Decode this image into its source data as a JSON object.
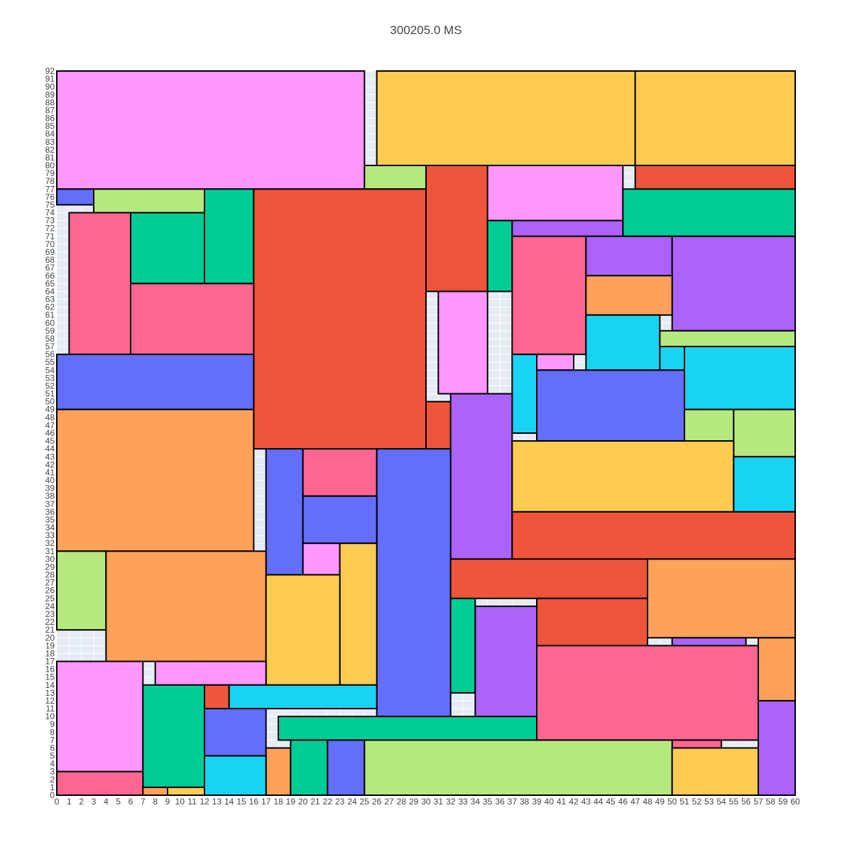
{
  "chart_data": {
    "type": "rectangle-packing",
    "title": "300205.0 MS",
    "xlim": [
      0,
      60
    ],
    "ylim": [
      0,
      92
    ],
    "grid": true,
    "colors": {
      "pink": "#ff97ff",
      "yellow": "#fecb52",
      "green": "#00cc96",
      "red": "#ef553b",
      "blue": "#636efa",
      "purple": "#ab63fa",
      "orange": "#ffa15a",
      "cyan": "#19d3f3",
      "lime": "#b6e880",
      "rose": "#ff6692",
      "background": "#e5ecf6",
      "outline": "#000000"
    },
    "rectangles": [
      {
        "x0": 0,
        "y0": 77,
        "x1": 25,
        "y1": 92,
        "color": "pink"
      },
      {
        "x0": 26,
        "y0": 80,
        "x1": 47,
        "y1": 92,
        "color": "yellow"
      },
      {
        "x0": 47,
        "y0": 80,
        "x1": 60,
        "y1": 92,
        "color": "yellow"
      },
      {
        "x0": 25,
        "y0": 77,
        "x1": 30,
        "y1": 80,
        "color": "lime"
      },
      {
        "x0": 30,
        "y0": 64,
        "x1": 35,
        "y1": 80,
        "color": "red"
      },
      {
        "x0": 35,
        "y0": 73,
        "x1": 46,
        "y1": 80,
        "color": "pink"
      },
      {
        "x0": 47,
        "y0": 77,
        "x1": 60,
        "y1": 80,
        "color": "red"
      },
      {
        "x0": 0,
        "y0": 75,
        "x1": 3,
        "y1": 77,
        "color": "blue"
      },
      {
        "x0": 3,
        "y0": 74,
        "x1": 12,
        "y1": 77,
        "color": "lime"
      },
      {
        "x0": 12,
        "y0": 65,
        "x1": 16,
        "y1": 77,
        "color": "green"
      },
      {
        "x0": 16,
        "y0": 44,
        "x1": 30,
        "y1": 77,
        "color": "red"
      },
      {
        "x0": 46,
        "y0": 71,
        "x1": 60,
        "y1": 77,
        "color": "green"
      },
      {
        "x0": 1,
        "y0": 56,
        "x1": 6,
        "y1": 74,
        "color": "rose"
      },
      {
        "x0": 6,
        "y0": 65,
        "x1": 12,
        "y1": 74,
        "color": "green"
      },
      {
        "x0": 35,
        "y0": 64,
        "x1": 37,
        "y1": 73,
        "color": "green"
      },
      {
        "x0": 37,
        "y0": 71,
        "x1": 46,
        "y1": 73,
        "color": "purple"
      },
      {
        "x0": 37,
        "y0": 56,
        "x1": 43,
        "y1": 71,
        "color": "rose"
      },
      {
        "x0": 43,
        "y0": 66,
        "x1": 50,
        "y1": 71,
        "color": "purple"
      },
      {
        "x0": 50,
        "y0": 59,
        "x1": 60,
        "y1": 71,
        "color": "purple"
      },
      {
        "x0": 43,
        "y0": 61,
        "x1": 50,
        "y1": 66,
        "color": "orange"
      },
      {
        "x0": 6,
        "y0": 56,
        "x1": 16,
        "y1": 65,
        "color": "rose"
      },
      {
        "x0": 31,
        "y0": 51,
        "x1": 35,
        "y1": 64,
        "color": "pink"
      },
      {
        "x0": 43,
        "y0": 54,
        "x1": 49,
        "y1": 61,
        "color": "cyan"
      },
      {
        "x0": 49,
        "y0": 57,
        "x1": 60,
        "y1": 59,
        "color": "lime"
      },
      {
        "x0": 49,
        "y0": 54,
        "x1": 51,
        "y1": 57,
        "color": "cyan"
      },
      {
        "x0": 51,
        "y0": 49,
        "x1": 60,
        "y1": 57,
        "color": "cyan"
      },
      {
        "x0": 0,
        "y0": 49,
        "x1": 16,
        "y1": 56,
        "color": "blue"
      },
      {
        "x0": 37,
        "y0": 46,
        "x1": 39,
        "y1": 56,
        "color": "cyan"
      },
      {
        "x0": 39,
        "y0": 54,
        "x1": 42,
        "y1": 56,
        "color": "pink"
      },
      {
        "x0": 39,
        "y0": 45,
        "x1": 51,
        "y1": 54,
        "color": "blue"
      },
      {
        "x0": 30,
        "y0": 44,
        "x1": 32,
        "y1": 50,
        "color": "red"
      },
      {
        "x0": 32,
        "y0": 30,
        "x1": 37,
        "y1": 51,
        "color": "purple"
      },
      {
        "x0": 51,
        "y0": 45,
        "x1": 55,
        "y1": 49,
        "color": "lime"
      },
      {
        "x0": 55,
        "y0": 43,
        "x1": 60,
        "y1": 49,
        "color": "lime"
      },
      {
        "x0": 0,
        "y0": 31,
        "x1": 16,
        "y1": 49,
        "color": "orange"
      },
      {
        "x0": 37,
        "y0": 36,
        "x1": 55,
        "y1": 45,
        "color": "yellow"
      },
      {
        "x0": 17,
        "y0": 28,
        "x1": 20,
        "y1": 44,
        "color": "blue"
      },
      {
        "x0": 20,
        "y0": 38,
        "x1": 26,
        "y1": 44,
        "color": "rose"
      },
      {
        "x0": 26,
        "y0": 10,
        "x1": 32,
        "y1": 44,
        "color": "blue"
      },
      {
        "x0": 55,
        "y0": 36,
        "x1": 60,
        "y1": 43,
        "color": "cyan"
      },
      {
        "x0": 20,
        "y0": 32,
        "x1": 26,
        "y1": 38,
        "color": "blue"
      },
      {
        "x0": 37,
        "y0": 30,
        "x1": 60,
        "y1": 36,
        "color": "red"
      },
      {
        "x0": 20,
        "y0": 28,
        "x1": 23,
        "y1": 32,
        "color": "pink"
      },
      {
        "x0": 23,
        "y0": 14,
        "x1": 26,
        "y1": 32,
        "color": "yellow"
      },
      {
        "x0": 0,
        "y0": 21,
        "x1": 4,
        "y1": 31,
        "color": "lime"
      },
      {
        "x0": 4,
        "y0": 17,
        "x1": 17,
        "y1": 31,
        "color": "orange"
      },
      {
        "x0": 32,
        "y0": 25,
        "x1": 48,
        "y1": 30,
        "color": "red"
      },
      {
        "x0": 48,
        "y0": 20,
        "x1": 60,
        "y1": 30,
        "color": "orange"
      },
      {
        "x0": 17,
        "y0": 14,
        "x1": 23,
        "y1": 28,
        "color": "yellow"
      },
      {
        "x0": 32,
        "y0": 13,
        "x1": 34,
        "y1": 25,
        "color": "green"
      },
      {
        "x0": 34,
        "y0": 10,
        "x1": 39,
        "y1": 24,
        "color": "purple"
      },
      {
        "x0": 39,
        "y0": 19,
        "x1": 48,
        "y1": 25,
        "color": "red"
      },
      {
        "x0": 50,
        "y0": 19,
        "x1": 56,
        "y1": 20,
        "color": "purple"
      },
      {
        "x0": 57,
        "y0": 12,
        "x1": 60,
        "y1": 20,
        "color": "orange"
      },
      {
        "x0": 39,
        "y0": 7,
        "x1": 57,
        "y1": 19,
        "color": "rose"
      },
      {
        "x0": 0,
        "y0": 3,
        "x1": 7,
        "y1": 17,
        "color": "pink"
      },
      {
        "x0": 8,
        "y0": 14,
        "x1": 17,
        "y1": 17,
        "color": "pink"
      },
      {
        "x0": 7,
        "y0": 1,
        "x1": 12,
        "y1": 14,
        "color": "green"
      },
      {
        "x0": 12,
        "y0": 11,
        "x1": 14,
        "y1": 14,
        "color": "red"
      },
      {
        "x0": 14,
        "y0": 11,
        "x1": 26,
        "y1": 14,
        "color": "cyan"
      },
      {
        "x0": 57,
        "y0": 0,
        "x1": 60,
        "y1": 12,
        "color": "purple"
      },
      {
        "x0": 12,
        "y0": 5,
        "x1": 17,
        "y1": 11,
        "color": "blue"
      },
      {
        "x0": 18,
        "y0": 7,
        "x1": 39,
        "y1": 10,
        "color": "green"
      },
      {
        "x0": 50,
        "y0": 6,
        "x1": 54,
        "y1": 7,
        "color": "rose"
      },
      {
        "x0": 17,
        "y0": 0,
        "x1": 19,
        "y1": 6,
        "color": "orange"
      },
      {
        "x0": 19,
        "y0": 0,
        "x1": 22,
        "y1": 7,
        "color": "green"
      },
      {
        "x0": 22,
        "y0": 0,
        "x1": 25,
        "y1": 7,
        "color": "blue"
      },
      {
        "x0": 25,
        "y0": 0,
        "x1": 50,
        "y1": 7,
        "color": "lime"
      },
      {
        "x0": 50,
        "y0": 0,
        "x1": 57,
        "y1": 6,
        "color": "yellow"
      },
      {
        "x0": 12,
        "y0": 0,
        "x1": 17,
        "y1": 5,
        "color": "cyan"
      },
      {
        "x0": 0,
        "y0": 0,
        "x1": 7,
        "y1": 3,
        "color": "rose"
      },
      {
        "x0": 7,
        "y0": 0,
        "x1": 9,
        "y1": 1,
        "color": "orange"
      },
      {
        "x0": 9,
        "y0": 0,
        "x1": 12,
        "y1": 1,
        "color": "yellow"
      }
    ]
  }
}
